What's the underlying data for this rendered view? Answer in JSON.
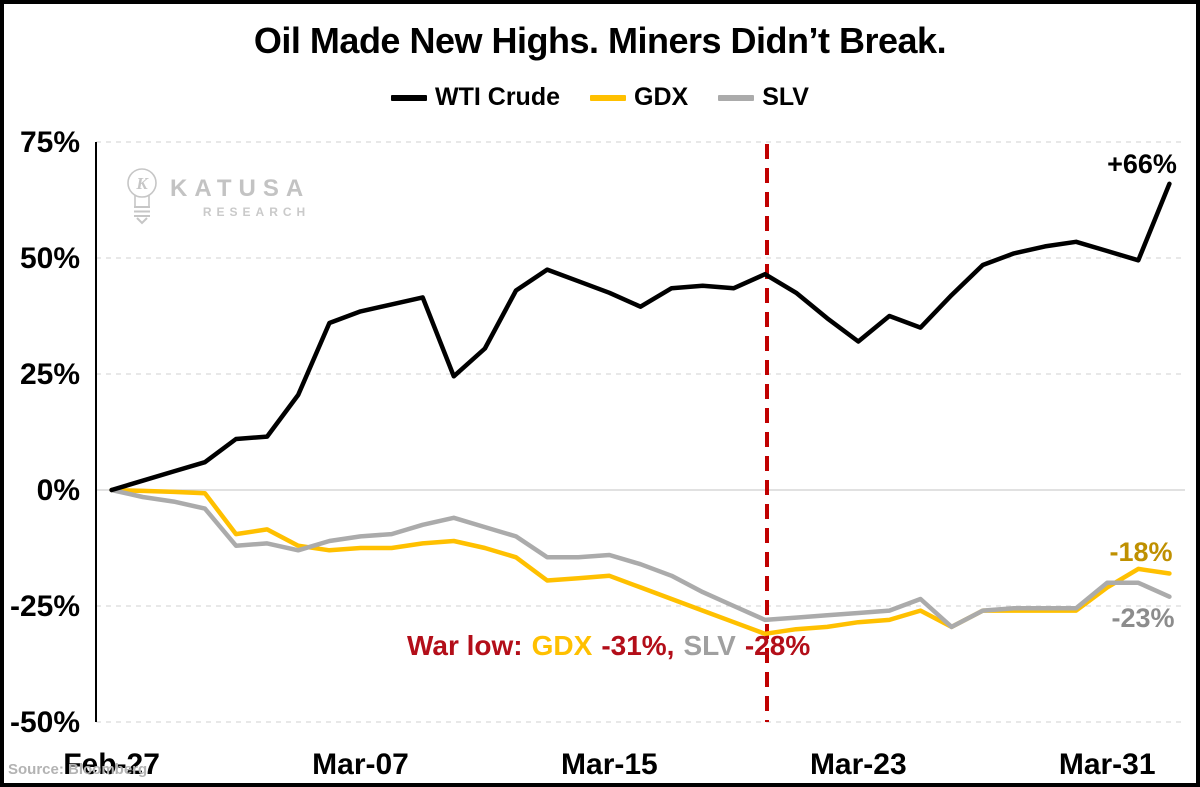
{
  "title": "Oil Made New Highs. Miners Didn’t Break.",
  "legend": [
    {
      "label": "WTI Crude",
      "color": "#000000"
    },
    {
      "label": "GDX",
      "color": "#FFC000"
    },
    {
      "label": "SLV",
      "color": "#ABABAB"
    }
  ],
  "watermark": {
    "name": "KATUSA",
    "sub": "RESEARCH"
  },
  "source": "Source: Bloomberg",
  "colors": {
    "grid": "#D9D9D9",
    "zero_line": "#CFCFCF",
    "axis": "#000000",
    "war_red": "#B30E19",
    "marker_red": "#C00000",
    "gdx_label": "#BF9000",
    "slv_label": "#8C8C8C",
    "wti_label": "#000000",
    "war_gdx": "#FFC000",
    "war_slv": "#A0A0A0"
  },
  "annotations": {
    "wti_end": "+66%",
    "gdx_end": "-18%",
    "slv_end": "-23%",
    "war_low": {
      "prefix": "War low:",
      "gdx_label": "GDX",
      "gdx_value": "-31%,",
      "slv_label": "SLV",
      "slv_value": "-28%"
    }
  },
  "chart_data": {
    "type": "line",
    "title": "Oil Made New Highs. Miners Didn't Break.",
    "xlabel": "",
    "ylabel": "",
    "ylim": [
      -50,
      75
    ],
    "grid": "horizontal-dashed",
    "legend_position": "top",
    "x": [
      "Feb-27",
      "Feb-28",
      "Mar-01",
      "Mar-02",
      "Mar-03",
      "Mar-04",
      "Mar-05",
      "Mar-06",
      "Mar-07",
      "Mar-08",
      "Mar-09",
      "Mar-10",
      "Mar-11",
      "Mar-12",
      "Mar-13",
      "Mar-14",
      "Mar-15",
      "Mar-16",
      "Mar-17",
      "Mar-18",
      "Mar-19",
      "Mar-20",
      "Mar-21",
      "Mar-22",
      "Mar-23",
      "Mar-24",
      "Mar-25",
      "Mar-26",
      "Mar-27",
      "Mar-28",
      "Mar-29",
      "Mar-30",
      "Mar-31",
      "Apr-01",
      "Apr-02"
    ],
    "x_tick_labels": [
      "Feb-27",
      "Mar-07",
      "Mar-15",
      "Mar-23",
      "Mar-31"
    ],
    "y_ticks": [
      75,
      50,
      25,
      0,
      -25,
      -50
    ],
    "y_tick_labels": [
      "75%",
      "50%",
      "25%",
      "0%",
      "-25%",
      "-50%"
    ],
    "series": [
      {
        "name": "WTI Crude",
        "color": "#000000",
        "values": [
          0,
          2,
          4,
          6,
          11,
          11.5,
          20.5,
          36,
          38.5,
          40,
          41.5,
          24.5,
          30.5,
          43,
          47.5,
          45,
          42.5,
          39.5,
          43.5,
          44,
          43.5,
          46.5,
          42.5,
          37,
          32,
          37.5,
          35,
          42,
          48.5,
          51,
          52.5,
          53.5,
          51.5,
          49.5,
          66
        ]
      },
      {
        "name": "GDX",
        "color": "#FFC000",
        "values": [
          0,
          -0.2,
          -0.4,
          -0.7,
          -9.5,
          -8.5,
          -12,
          -13,
          -12.5,
          -12.5,
          -11.5,
          -11,
          -12.5,
          -14.5,
          -19.5,
          -19,
          -18.5,
          -21,
          -23.5,
          -26,
          -28.5,
          -31,
          -30,
          -29.5,
          -28.5,
          -28,
          -26,
          -29.5,
          -26,
          -26,
          -26,
          -26,
          -21,
          -17,
          -18
        ]
      },
      {
        "name": "SLV",
        "color": "#ABABAB",
        "values": [
          0,
          -1.5,
          -2.5,
          -4,
          -12,
          -11.5,
          -13,
          -11,
          -10,
          -9.5,
          -7.5,
          -6,
          -8,
          -10,
          -14.5,
          -14.5,
          -14,
          -16,
          -18.5,
          -22,
          -25,
          -28,
          -27.5,
          -27,
          -26.5,
          -26,
          -23.5,
          -29.5,
          -26,
          -25.5,
          -25.5,
          -25.5,
          -20,
          -20,
          -23
        ]
      }
    ],
    "war_low_marker": {
      "date": "Mar-20",
      "style": "dashed",
      "color": "#C00000"
    }
  }
}
